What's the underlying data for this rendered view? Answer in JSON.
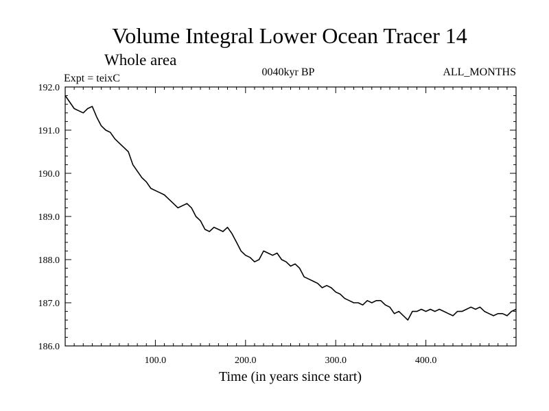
{
  "chart_data": {
    "type": "line",
    "title": "Volume Integral Lower Ocean Tracer 14",
    "subtitle": "Whole area",
    "annotations": {
      "left": "Expt = teixC",
      "center": "0040kyr BP",
      "right": "ALL_MONTHS"
    },
    "xlabel": "Time (in years since start)",
    "ylabel": "",
    "xlim": [
      0,
      500
    ],
    "ylim": [
      186.0,
      192.0
    ],
    "x_ticks": [
      100,
      200,
      300,
      400
    ],
    "x_tick_labels": [
      "100.0",
      "200.0",
      "300.0",
      "400.0"
    ],
    "y_ticks": [
      186,
      187,
      188,
      189,
      190,
      191,
      192
    ],
    "y_tick_labels": [
      "186.0",
      "187.0",
      "188.0",
      "189.0",
      "190.0",
      "191.0",
      "192.0"
    ],
    "grid": false,
    "line_color": "#000000",
    "series": [
      {
        "x": [
          0,
          5,
          10,
          15,
          20,
          25,
          30,
          35,
          40,
          45,
          50,
          55,
          60,
          65,
          70,
          75,
          80,
          85,
          90,
          95,
          100,
          105,
          110,
          115,
          120,
          125,
          130,
          135,
          140,
          145,
          150,
          155,
          160,
          165,
          170,
          175,
          180,
          185,
          190,
          195,
          200,
          205,
          210,
          215,
          220,
          225,
          230,
          235,
          240,
          245,
          250,
          255,
          260,
          265,
          270,
          275,
          280,
          285,
          290,
          295,
          300,
          305,
          310,
          315,
          320,
          325,
          330,
          335,
          340,
          345,
          350,
          355,
          360,
          365,
          370,
          375,
          380,
          385,
          390,
          395,
          400,
          405,
          410,
          415,
          420,
          425,
          430,
          435,
          440,
          445,
          450,
          455,
          460,
          465,
          470,
          475,
          480,
          485,
          490,
          495,
          500
        ],
        "values": [
          191.8,
          191.65,
          191.5,
          191.45,
          191.4,
          191.5,
          191.55,
          191.3,
          191.1,
          191.0,
          190.95,
          190.8,
          190.7,
          190.6,
          190.5,
          190.2,
          190.05,
          189.9,
          189.8,
          189.65,
          189.6,
          189.55,
          189.5,
          189.4,
          189.3,
          189.2,
          189.25,
          189.3,
          189.2,
          189.0,
          188.9,
          188.7,
          188.65,
          188.75,
          188.7,
          188.65,
          188.75,
          188.6,
          188.4,
          188.2,
          188.1,
          188.05,
          187.95,
          188.0,
          188.2,
          188.15,
          188.1,
          188.15,
          188.0,
          187.95,
          187.85,
          187.9,
          187.8,
          187.6,
          187.55,
          187.5,
          187.45,
          187.35,
          187.4,
          187.35,
          187.25,
          187.2,
          187.1,
          187.05,
          187.0,
          187.0,
          186.95,
          187.05,
          187.0,
          187.05,
          187.05,
          186.95,
          186.9,
          186.75,
          186.8,
          186.7,
          186.6,
          186.8,
          186.8,
          186.85,
          186.8,
          186.85,
          186.8,
          186.85,
          186.8,
          186.75,
          186.7,
          186.8,
          186.8,
          186.85,
          186.9,
          186.85,
          186.9,
          186.8,
          186.75,
          186.7,
          186.75,
          186.75,
          186.7,
          186.8,
          186.85
        ]
      }
    ]
  }
}
